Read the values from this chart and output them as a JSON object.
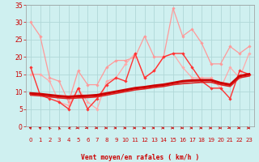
{
  "xlabel": "Vent moyen/en rafales ( km/h )",
  "xlim": [
    -0.5,
    23.5
  ],
  "ylim": [
    0,
    35
  ],
  "yticks": [
    0,
    5,
    10,
    15,
    20,
    25,
    30,
    35
  ],
  "xticks": [
    0,
    1,
    2,
    3,
    4,
    5,
    6,
    7,
    8,
    9,
    10,
    11,
    12,
    13,
    14,
    15,
    16,
    17,
    18,
    19,
    20,
    21,
    22,
    23
  ],
  "background_color": "#cff0f0",
  "grid_color": "#b0d8d8",
  "series": [
    {
      "x": [
        0,
        1,
        2,
        3,
        4,
        5,
        6,
        7,
        8,
        9,
        10,
        11,
        12,
        13,
        14,
        15,
        16,
        17,
        18,
        19,
        20,
        21,
        22,
        23
      ],
      "y": [
        30,
        26,
        14,
        13,
        7,
        16,
        12,
        12,
        17,
        19,
        19,
        20,
        26,
        20,
        20,
        34,
        26,
        28,
        24,
        18,
        18,
        23,
        21,
        23
      ],
      "color": "#ff9999",
      "lw": 0.9,
      "marker": "D",
      "ms": 1.8,
      "zorder": 2
    },
    {
      "x": [
        0,
        1,
        2,
        3,
        4,
        5,
        6,
        7,
        8,
        9,
        10,
        11,
        12,
        13,
        14,
        15,
        16,
        17,
        18,
        19,
        20,
        21,
        22,
        23
      ],
      "y": [
        15,
        15,
        13,
        7,
        6,
        11,
        7,
        5,
        13,
        14,
        18,
        21,
        14,
        16,
        20,
        21,
        17,
        14,
        14,
        14,
        11,
        17,
        14,
        21
      ],
      "color": "#ffaaaa",
      "lw": 0.9,
      "marker": "D",
      "ms": 1.8,
      "zorder": 2
    },
    {
      "x": [
        0,
        1,
        2,
        3,
        4,
        5,
        6,
        7,
        8,
        9,
        10,
        11,
        12,
        13,
        14,
        15,
        16,
        17,
        18,
        19,
        20,
        21,
        22,
        23
      ],
      "y": [
        17,
        9,
        8,
        7,
        5,
        11,
        5,
        8,
        12,
        14,
        13,
        21,
        14,
        16,
        20,
        21,
        21,
        17,
        13,
        11,
        11,
        8,
        16,
        15
      ],
      "color": "#ff3333",
      "lw": 1.0,
      "marker": "D",
      "ms": 1.8,
      "zorder": 3
    },
    {
      "x": [
        0,
        1,
        2,
        3,
        4,
        5,
        6,
        7,
        8,
        9,
        10,
        11,
        12,
        13,
        14,
        15,
        16,
        17,
        18,
        19,
        20,
        21,
        22,
        23
      ],
      "y": [
        9.5,
        9.3,
        9.0,
        8.7,
        8.5,
        8.7,
        8.8,
        9.0,
        9.5,
        10.0,
        10.5,
        11.0,
        11.3,
        11.7,
        12.0,
        12.5,
        13.0,
        13.2,
        13.3,
        13.3,
        12.5,
        12.0,
        14.5,
        15.0
      ],
      "color": "#cc0000",
      "lw": 2.2,
      "marker": null,
      "ms": 0,
      "zorder": 4
    },
    {
      "x": [
        0,
        1,
        2,
        3,
        4,
        5,
        6,
        7,
        8,
        9,
        10,
        11,
        12,
        13,
        14,
        15,
        16,
        17,
        18,
        19,
        20,
        21,
        22,
        23
      ],
      "y": [
        9.0,
        8.8,
        8.5,
        8.2,
        8.0,
        8.2,
        8.3,
        8.5,
        9.0,
        9.5,
        10.0,
        10.5,
        10.8,
        11.2,
        11.5,
        12.0,
        12.3,
        12.5,
        12.7,
        12.7,
        12.0,
        11.5,
        14.0,
        14.5
      ],
      "color": "#dd2222",
      "lw": 1.2,
      "marker": null,
      "ms": 0,
      "zorder": 4
    }
  ],
  "wind_angles": [
    225,
    220,
    200,
    190,
    270,
    70,
    60,
    70,
    80,
    80,
    80,
    80,
    80,
    80,
    80,
    80,
    80,
    80,
    80,
    80,
    80,
    60,
    70,
    80
  ]
}
